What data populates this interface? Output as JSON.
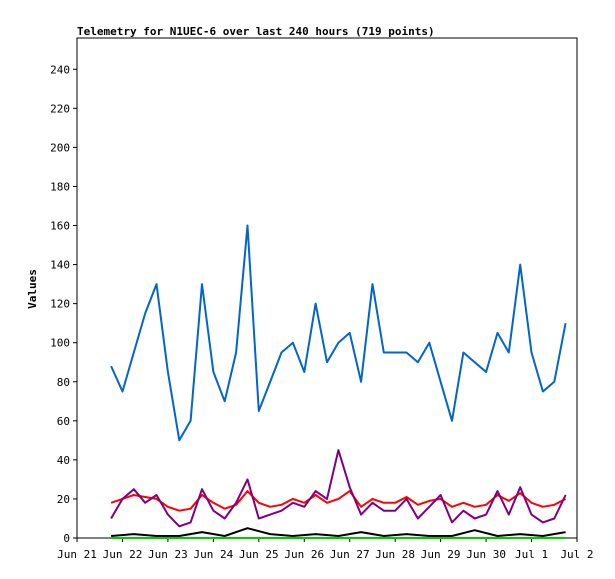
{
  "chart_data": {
    "type": "line",
    "title": "Telemetry for N1UEC-6 over last 240 hours (719 points)",
    "xlabel": "",
    "ylabel": "Values",
    "ylim": [
      0,
      256
    ],
    "yticks": [
      0,
      20,
      40,
      60,
      80,
      100,
      120,
      140,
      160,
      180,
      200,
      220,
      240
    ],
    "xlim": [
      "2019-06-21",
      "2019-07-02"
    ],
    "xticks": [
      "Jun 21",
      "Jun 22",
      "Jun 23",
      "Jun 24",
      "Jun 25",
      "Jun 26",
      "Jun 27",
      "Jun 28",
      "Jun 29",
      "Jun 30",
      "Jul 1",
      "Jul 2"
    ],
    "grid": false,
    "legend": "none",
    "series": [
      {
        "color": "#0066cc",
        "x": [
          "2019-06-21T18:00",
          "2019-06-22T00:00",
          "2019-06-22T06:00",
          "2019-06-22T12:00",
          "2019-06-22T18:00",
          "2019-06-23T00:00",
          "2019-06-23T06:00",
          "2019-06-23T12:00",
          "2019-06-23T18:00",
          "2019-06-24T00:00",
          "2019-06-24T06:00",
          "2019-06-24T12:00",
          "2019-06-24T18:00",
          "2019-06-25T00:00",
          "2019-06-25T06:00",
          "2019-06-25T12:00",
          "2019-06-25T18:00",
          "2019-06-26T00:00",
          "2019-06-26T06:00",
          "2019-06-26T12:00",
          "2019-06-26T18:00",
          "2019-06-27T00:00",
          "2019-06-27T06:00",
          "2019-06-27T12:00",
          "2019-06-27T18:00",
          "2019-06-28T00:00",
          "2019-06-28T06:00",
          "2019-06-28T12:00",
          "2019-06-28T18:00",
          "2019-06-29T00:00",
          "2019-06-29T06:00",
          "2019-06-29T12:00",
          "2019-06-29T18:00",
          "2019-06-30T00:00",
          "2019-06-30T06:00",
          "2019-06-30T12:00",
          "2019-06-30T18:00",
          "2019-07-01T00:00",
          "2019-07-01T06:00",
          "2019-07-01T12:00",
          "2019-07-01T18:00"
        ],
        "values": [
          88,
          75,
          95,
          115,
          130,
          85,
          50,
          60,
          130,
          85,
          70,
          95,
          160,
          65,
          80,
          95,
          100,
          85,
          120,
          90,
          100,
          105,
          80,
          130,
          95,
          95,
          95,
          90,
          100,
          80,
          60,
          95,
          90,
          85,
          105,
          95,
          140,
          95,
          75,
          80,
          110
        ]
      },
      {
        "color": "#ff0000",
        "x": [
          "2019-06-21T18:00",
          "2019-06-22T00:00",
          "2019-06-22T06:00",
          "2019-06-22T12:00",
          "2019-06-22T18:00",
          "2019-06-23T00:00",
          "2019-06-23T06:00",
          "2019-06-23T12:00",
          "2019-06-23T18:00",
          "2019-06-24T00:00",
          "2019-06-24T06:00",
          "2019-06-24T12:00",
          "2019-06-24T18:00",
          "2019-06-25T00:00",
          "2019-06-25T06:00",
          "2019-06-25T12:00",
          "2019-06-25T18:00",
          "2019-06-26T00:00",
          "2019-06-26T06:00",
          "2019-06-26T12:00",
          "2019-06-26T18:00",
          "2019-06-27T00:00",
          "2019-06-27T06:00",
          "2019-06-27T12:00",
          "2019-06-27T18:00",
          "2019-06-28T00:00",
          "2019-06-28T06:00",
          "2019-06-28T12:00",
          "2019-06-28T18:00",
          "2019-06-29T00:00",
          "2019-06-29T06:00",
          "2019-06-29T12:00",
          "2019-06-29T18:00",
          "2019-06-30T00:00",
          "2019-06-30T06:00",
          "2019-06-30T12:00",
          "2019-06-30T18:00",
          "2019-07-01T00:00",
          "2019-07-01T06:00",
          "2019-07-01T12:00",
          "2019-07-01T18:00"
        ],
        "values": [
          18,
          20,
          22,
          21,
          20,
          16,
          14,
          15,
          22,
          18,
          15,
          17,
          24,
          18,
          16,
          17,
          20,
          18,
          22,
          18,
          20,
          24,
          16,
          20,
          18,
          18,
          21,
          17,
          19,
          20,
          16,
          18,
          16,
          17,
          22,
          19,
          23,
          18,
          16,
          17,
          20
        ]
      },
      {
        "color": "#800080",
        "x": [
          "2019-06-21T18:00",
          "2019-06-22T00:00",
          "2019-06-22T06:00",
          "2019-06-22T12:00",
          "2019-06-22T18:00",
          "2019-06-23T00:00",
          "2019-06-23T06:00",
          "2019-06-23T12:00",
          "2019-06-23T18:00",
          "2019-06-24T00:00",
          "2019-06-24T06:00",
          "2019-06-24T12:00",
          "2019-06-24T18:00",
          "2019-06-25T00:00",
          "2019-06-25T06:00",
          "2019-06-25T12:00",
          "2019-06-25T18:00",
          "2019-06-26T00:00",
          "2019-06-26T06:00",
          "2019-06-26T12:00",
          "2019-06-26T18:00",
          "2019-06-27T00:00",
          "2019-06-27T06:00",
          "2019-06-27T12:00",
          "2019-06-27T18:00",
          "2019-06-28T00:00",
          "2019-06-28T06:00",
          "2019-06-28T12:00",
          "2019-06-28T18:00",
          "2019-06-29T00:00",
          "2019-06-29T06:00",
          "2019-06-29T12:00",
          "2019-06-29T18:00",
          "2019-06-30T00:00",
          "2019-06-30T06:00",
          "2019-06-30T12:00",
          "2019-06-30T18:00",
          "2019-07-01T00:00",
          "2019-07-01T06:00",
          "2019-07-01T12:00",
          "2019-07-01T18:00"
        ],
        "values": [
          10,
          20,
          25,
          18,
          22,
          12,
          6,
          8,
          25,
          14,
          10,
          18,
          30,
          10,
          12,
          14,
          18,
          16,
          24,
          20,
          45,
          26,
          12,
          18,
          14,
          14,
          20,
          10,
          16,
          22,
          8,
          14,
          10,
          12,
          24,
          12,
          26,
          12,
          8,
          10,
          22
        ]
      },
      {
        "color": "#000000",
        "x": [
          "2019-06-21T18:00",
          "2019-06-22T06:00",
          "2019-06-22T18:00",
          "2019-06-23T06:00",
          "2019-06-23T18:00",
          "2019-06-24T06:00",
          "2019-06-24T18:00",
          "2019-06-25T06:00",
          "2019-06-25T18:00",
          "2019-06-26T06:00",
          "2019-06-26T18:00",
          "2019-06-27T06:00",
          "2019-06-27T18:00",
          "2019-06-28T06:00",
          "2019-06-28T18:00",
          "2019-06-29T06:00",
          "2019-06-29T18:00",
          "2019-06-30T06:00",
          "2019-06-30T18:00",
          "2019-07-01T06:00",
          "2019-07-01T18:00"
        ],
        "values": [
          1,
          2,
          1,
          1,
          3,
          1,
          5,
          2,
          1,
          2,
          1,
          3,
          1,
          2,
          1,
          1,
          4,
          1,
          2,
          1,
          3
        ]
      },
      {
        "color": "#00cc00",
        "x": [
          "2019-06-21T18:00",
          "2019-07-01T18:00"
        ],
        "values": [
          0,
          0
        ]
      }
    ]
  }
}
